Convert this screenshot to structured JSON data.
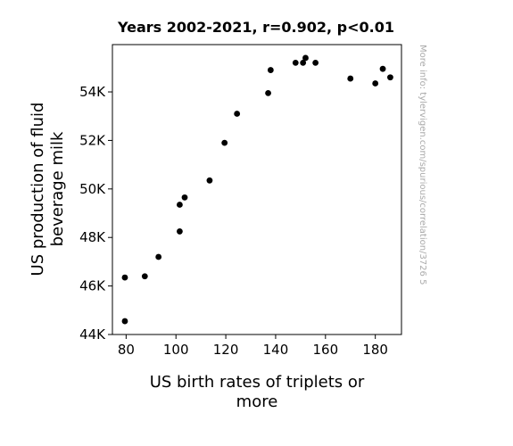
{
  "chart_data": {
    "type": "scatter",
    "title": "Years 2002-2021, r=0.902, p<0.01",
    "xlabel_lines": [
      "US birth rates of triplets or",
      "more"
    ],
    "ylabel_lines": [
      "US production of fluid",
      "beverage milk"
    ],
    "side_note": "More info: tylervigen.com/spurious/correlation/3726 5",
    "xlim": [
      74.5,
      190.5
    ],
    "ylim": [
      44000,
      55950
    ],
    "xticks": [
      80,
      100,
      120,
      140,
      160,
      180
    ],
    "xtick_labels": [
      "80",
      "100",
      "120",
      "140",
      "160",
      "180"
    ],
    "yticks": [
      44000,
      46000,
      48000,
      50000,
      52000,
      54000
    ],
    "ytick_labels": [
      "44K",
      "46K",
      "48K",
      "50K",
      "52K",
      "54K"
    ],
    "marker_color": "#000000",
    "grid": false,
    "points": [
      {
        "x": 79.5,
        "y": 44550
      },
      {
        "x": 79.5,
        "y": 46350
      },
      {
        "x": 87.5,
        "y": 46400
      },
      {
        "x": 93.0,
        "y": 47200
      },
      {
        "x": 101.5,
        "y": 48250
      },
      {
        "x": 101.5,
        "y": 49350
      },
      {
        "x": 103.5,
        "y": 49650
      },
      {
        "x": 113.5,
        "y": 50350
      },
      {
        "x": 119.5,
        "y": 51900
      },
      {
        "x": 124.5,
        "y": 53100
      },
      {
        "x": 137.0,
        "y": 53950
      },
      {
        "x": 138.0,
        "y": 54900
      },
      {
        "x": 148.0,
        "y": 55200
      },
      {
        "x": 151.0,
        "y": 55200
      },
      {
        "x": 152.0,
        "y": 55400
      },
      {
        "x": 156.0,
        "y": 55200
      },
      {
        "x": 170.0,
        "y": 54550
      },
      {
        "x": 180.0,
        "y": 54350
      },
      {
        "x": 183.0,
        "y": 54950
      },
      {
        "x": 186.0,
        "y": 54600
      }
    ]
  }
}
